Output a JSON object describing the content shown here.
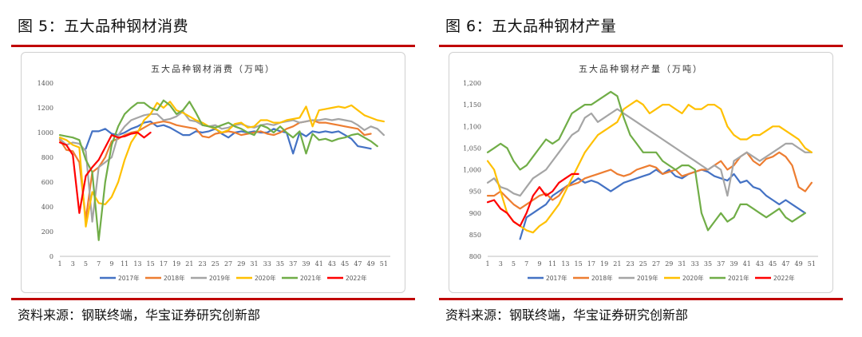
{
  "panels": [
    {
      "figure_title": "图 5：五大品种钢材消费",
      "source": "资料来源：钢联终端，华宝证券研究创新部"
    },
    {
      "figure_title": "图 6：五大品种钢材产量",
      "source": "资料来源：钢联终端，华宝证券研究创新部"
    }
  ],
  "colors": {
    "accent_rule": "#c00000",
    "s2017": "#4472c4",
    "s2018": "#ed7d31",
    "s2019": "#a5a5a5",
    "s2020": "#ffc000",
    "s2021": "#70ad47",
    "s2022": "#ff0000"
  },
  "chart_data": [
    {
      "type": "line",
      "title": "五大品种钢材消费（万吨）",
      "xlabel": "",
      "ylabel": "",
      "x_ticks": [
        "1",
        "3",
        "5",
        "7",
        "9",
        "11",
        "13",
        "15",
        "17",
        "19",
        "21",
        "23",
        "25",
        "27",
        "29",
        "31",
        "33",
        "35",
        "37",
        "39",
        "41",
        "43",
        "45",
        "47",
        "49",
        "51"
      ],
      "y_ticks": [
        "0",
        "200",
        "400",
        "600",
        "800",
        "1000",
        "1200",
        "1400"
      ],
      "ylim": [
        0,
        1400
      ],
      "xlim": [
        1,
        52
      ],
      "grid": false,
      "legend": "bottom",
      "series": [
        {
          "name": "2017年",
          "color": "#4472c4",
          "values": [
            null,
            null,
            null,
            null,
            870,
            1010,
            1010,
            1030,
            990,
            980,
            1000,
            1030,
            1050,
            1080,
            1090,
            1050,
            1060,
            1040,
            1010,
            980,
            980,
            1010,
            1000,
            1010,
            1030,
            990,
            960,
            1000,
            1010,
            1000,
            1010,
            1000,
            1000,
            1030,
            1010,
            1000,
            830,
            1000,
            970,
            1010,
            1000,
            1010,
            1000,
            1010,
            980,
            950,
            890,
            880,
            870
          ]
        },
        {
          "name": "2018年",
          "color": "#ed7d31",
          "values": [
            940,
            860,
            850,
            760,
            300,
            680,
            720,
            800,
            930,
            950,
            980,
            1000,
            1010,
            1040,
            1070,
            1080,
            1090,
            1080,
            1060,
            1050,
            1040,
            1030,
            970,
            960,
            990,
            1000,
            1010,
            1000,
            980,
            990,
            1000,
            1010,
            990,
            980,
            1000,
            1030,
            1050,
            1080,
            1090,
            1100,
            1080,
            1080,
            1070,
            1060,
            1050,
            1040,
            1030,
            980,
            990
          ]
        },
        {
          "name": "2019年",
          "color": "#a5a5a5",
          "values": [
            950,
            900,
            920,
            910,
            850,
            280,
            720,
            760,
            800,
            980,
            1050,
            1100,
            1120,
            1140,
            1150,
            1150,
            1100,
            1110,
            1130,
            1170,
            1100,
            1090,
            1060,
            1050,
            1060,
            1030,
            1040,
            1060,
            1070,
            1050,
            1040,
            1060,
            1070,
            1060,
            1080,
            1090,
            1100,
            1080,
            1090,
            1100,
            1100,
            1110,
            1100,
            1110,
            1100,
            1090,
            1060,
            1020,
            1050,
            1030,
            980
          ]
        },
        {
          "name": "2020年",
          "color": "#ffc000",
          "values": [
            960,
            940,
            900,
            880,
            240,
            520,
            430,
            420,
            480,
            600,
            780,
            920,
            1000,
            1100,
            1150,
            1240,
            1200,
            1250,
            1180,
            1160,
            1130,
            1100,
            1080,
            1050,
            1030,
            1000,
            1020,
            1070,
            1080,
            1040,
            1050,
            1100,
            1100,
            1080,
            1080,
            1100,
            1110,
            1120,
            1210,
            1050,
            1180,
            1190,
            1200,
            1210,
            1200,
            1220,
            1180,
            1140,
            1120,
            1100,
            1090
          ]
        },
        {
          "name": "2021年",
          "color": "#70ad47",
          "values": [
            980,
            970,
            960,
            940,
            780,
            680,
            130,
            600,
            900,
            1050,
            1150,
            1200,
            1240,
            1240,
            1200,
            1180,
            1260,
            1220,
            1150,
            1180,
            1250,
            1160,
            1060,
            1050,
            1040,
            1060,
            1080,
            1050,
            1030,
            1000,
            980,
            1060,
            1040,
            1000,
            1050,
            1000,
            960,
            1010,
            830,
            990,
            940,
            950,
            930,
            950,
            960,
            980,
            990,
            960,
            930,
            890
          ]
        },
        {
          "name": "2022年",
          "color": "#ff0000",
          "values": [
            920,
            900,
            820,
            350,
            650,
            720,
            780,
            880,
            980,
            960,
            970,
            990,
            1000,
            960,
            1000
          ]
        }
      ]
    },
    {
      "type": "line",
      "title": "五大品种钢材产量（万吨）",
      "xlabel": "",
      "ylabel": "",
      "x_ticks": [
        "1",
        "3",
        "5",
        "7",
        "9",
        "11",
        "13",
        "15",
        "17",
        "19",
        "21",
        "23",
        "25",
        "27",
        "29",
        "31",
        "33",
        "35",
        "37",
        "39",
        "41",
        "43",
        "45",
        "47",
        "49",
        "51"
      ],
      "y_ticks": [
        "800",
        "850",
        "900",
        "950",
        "1,000",
        "1,050",
        "1,100",
        "1,150",
        "1,200"
      ],
      "ylim": [
        800,
        1200
      ],
      "xlim": [
        1,
        52
      ],
      "grid": false,
      "legend": "bottom",
      "series": [
        {
          "name": "2017年",
          "color": "#4472c4",
          "values": [
            null,
            null,
            null,
            null,
            null,
            840,
            890,
            900,
            910,
            920,
            940,
            950,
            960,
            970,
            980,
            970,
            975,
            970,
            960,
            950,
            960,
            970,
            975,
            980,
            985,
            990,
            1000,
            990,
            1000,
            985,
            980,
            990,
            995,
            1000,
            995,
            985,
            980,
            975,
            990,
            970,
            975,
            960,
            955,
            940,
            930,
            920,
            930,
            920,
            910,
            900
          ]
        },
        {
          "name": "2018年",
          "color": "#ed7d31",
          "values": [
            940,
            940,
            950,
            935,
            920,
            910,
            920,
            930,
            940,
            945,
            930,
            940,
            960,
            965,
            970,
            980,
            985,
            990,
            995,
            1000,
            990,
            985,
            990,
            1000,
            1005,
            1010,
            1005,
            990,
            995,
            1000,
            985,
            990,
            995,
            1000,
            1000,
            1010,
            1020,
            1000,
            1010,
            1030,
            1040,
            1020,
            1010,
            1025,
            1030,
            1040,
            1030,
            1010,
            960,
            950,
            970
          ]
        },
        {
          "name": "2019年",
          "color": "#a5a5a5",
          "values": [
            970,
            980,
            960,
            955,
            945,
            940,
            960,
            980,
            990,
            1000,
            1020,
            1040,
            1060,
            1080,
            1090,
            1120,
            1130,
            1110,
            1120,
            1130,
            1140,
            1130,
            1120,
            1110,
            1100,
            1090,
            1080,
            1070,
            1060,
            1050,
            1040,
            1030,
            1020,
            1010,
            1000,
            1010,
            1000,
            940,
            1020,
            1030,
            1040,
            1030,
            1020,
            1030,
            1040,
            1050,
            1060,
            1060,
            1050,
            1040,
            1040
          ]
        },
        {
          "name": "2020年",
          "color": "#ffc000",
          "values": [
            1020,
            1000,
            950,
            900,
            880,
            870,
            860,
            855,
            870,
            880,
            900,
            920,
            950,
            980,
            1010,
            1040,
            1060,
            1080,
            1090,
            1100,
            1110,
            1140,
            1150,
            1160,
            1150,
            1130,
            1140,
            1150,
            1150,
            1140,
            1130,
            1150,
            1140,
            1140,
            1150,
            1150,
            1140,
            1100,
            1080,
            1070,
            1070,
            1080,
            1080,
            1090,
            1100,
            1100,
            1090,
            1080,
            1070,
            1050,
            1040
          ]
        },
        {
          "name": "2021年",
          "color": "#70ad47",
          "values": [
            1040,
            1050,
            1060,
            1050,
            1020,
            1000,
            1010,
            1030,
            1050,
            1070,
            1060,
            1070,
            1100,
            1130,
            1140,
            1150,
            1150,
            1160,
            1170,
            1180,
            1170,
            1120,
            1080,
            1060,
            1040,
            1040,
            1040,
            1020,
            1010,
            1000,
            1010,
            1010,
            1000,
            900,
            860,
            880,
            900,
            880,
            890,
            920,
            920,
            910,
            900,
            890,
            900,
            910,
            890,
            880,
            890,
            900
          ]
        },
        {
          "name": "2022年",
          "color": "#ff0000",
          "values": [
            925,
            930,
            910,
            900,
            880,
            870,
            900,
            940,
            960,
            940,
            950,
            970,
            980,
            990,
            990
          ]
        }
      ]
    }
  ]
}
